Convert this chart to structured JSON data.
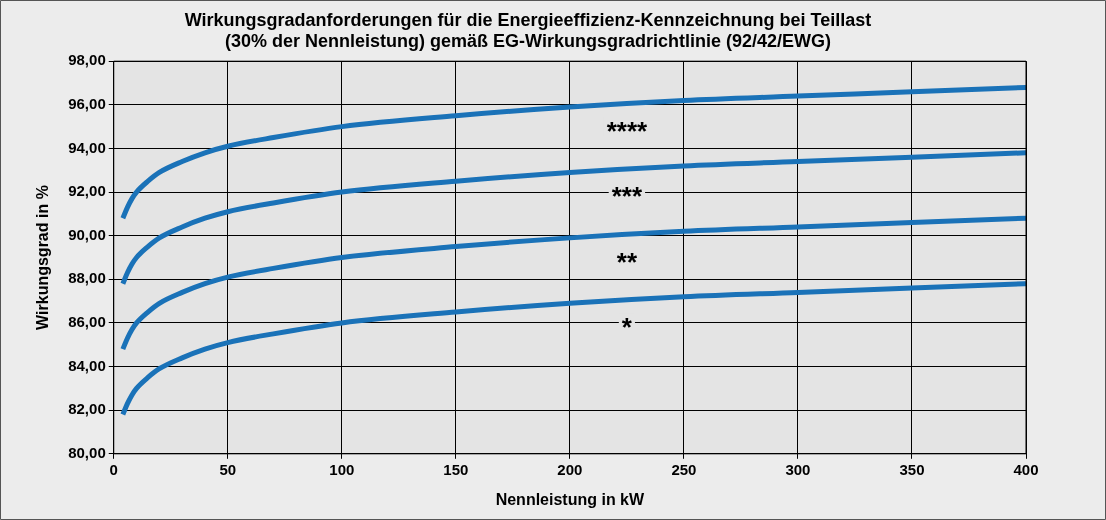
{
  "chart_data": {
    "type": "line",
    "title": "Wirkungsgradanforderungen für die Energieeffizienz-Kennzeichnung bei Teillast\n(30% der Nennleistung) gemäß EG-Wirkungsgradrichtlinie (92/42/EWG)",
    "xlabel": "Nennleistung in kW",
    "ylabel": "Wirkungsgrad in %",
    "x": [
      4,
      6,
      8,
      10,
      15,
      20,
      30,
      40,
      50,
      70,
      100,
      150,
      200,
      250,
      300,
      350,
      400
    ],
    "series": [
      {
        "name": "*",
        "color": "#1a72b8",
        "values": [
          81.8,
          82.3,
          82.7,
          83.0,
          83.5,
          83.9,
          84.4,
          84.8,
          85.1,
          85.5,
          86.0,
          86.5,
          86.9,
          87.2,
          87.4,
          87.6,
          87.8
        ]
      },
      {
        "name": "**",
        "color": "#1a72b8",
        "values": [
          84.8,
          85.3,
          85.7,
          86.0,
          86.5,
          86.9,
          87.4,
          87.8,
          88.1,
          88.5,
          89.0,
          89.5,
          89.9,
          90.2,
          90.4,
          90.6,
          90.8
        ]
      },
      {
        "name": "***",
        "color": "#1a72b8",
        "values": [
          87.8,
          88.3,
          88.7,
          89.0,
          89.5,
          89.9,
          90.4,
          90.8,
          91.1,
          91.5,
          92.0,
          92.5,
          92.9,
          93.2,
          93.4,
          93.6,
          93.8
        ]
      },
      {
        "name": "****",
        "color": "#1a72b8",
        "values": [
          90.8,
          91.3,
          91.7,
          92.0,
          92.5,
          92.9,
          93.4,
          93.8,
          94.1,
          94.5,
          95.0,
          95.5,
          95.9,
          96.2,
          96.4,
          96.6,
          96.8
        ]
      }
    ],
    "xlim": [
      0,
      400
    ],
    "xticks": [
      0,
      50,
      100,
      150,
      200,
      250,
      300,
      350,
      400
    ],
    "ylim": [
      80,
      98
    ],
    "yticks": [
      {
        "value": 80,
        "label": "80,00"
      },
      {
        "value": 82,
        "label": "82,00"
      },
      {
        "value": 84,
        "label": "84,00"
      },
      {
        "value": 86,
        "label": "86,00"
      },
      {
        "value": 88,
        "label": "88,00"
      },
      {
        "value": 90,
        "label": "90,00"
      },
      {
        "value": 92,
        "label": "92,00"
      },
      {
        "value": 94,
        "label": "94,00"
      },
      {
        "value": 96,
        "label": "96,00"
      },
      {
        "value": 98,
        "label": "98,00"
      }
    ],
    "grid": true,
    "legend": false,
    "marker": "none",
    "line_style": "solid"
  }
}
